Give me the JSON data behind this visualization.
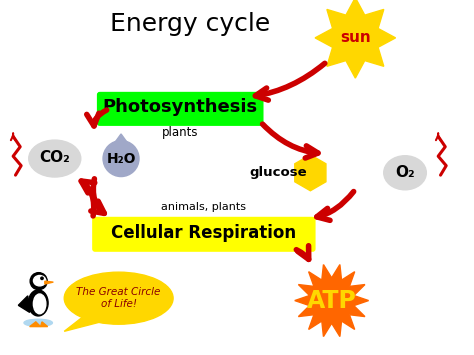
{
  "title": "Energy cycle",
  "bg_color": "#ffffff",
  "title_fontsize": 18,
  "photosynthesis_label": "Photosynthesis",
  "photosynthesis_sub": "plants",
  "photosynthesis_box_color": "#00ff00",
  "cellular_label": "Cellular Respiration",
  "cellular_sub": "animals, plants",
  "cellular_box_color": "#ffff00",
  "sun_color": "#ffd700",
  "sun_edge_color": "#b8860b",
  "sun_text": "sun",
  "sun_text_color": "#cc0000",
  "glucose_color": "#ffd700",
  "glucose_label": "glucose",
  "o2_label": "O₂",
  "co2_label": "CO₂",
  "h2o_label": "H₂O",
  "atp_label": "ATP",
  "atp_burst_color": "#ff6600",
  "atp_text_color": "#ffd700",
  "arrow_color": "#cc0000",
  "lightning_color": "#cc0000",
  "speech_bubble_color": "#ffd700",
  "speech_text": "The Great Circle\nof Life!",
  "speech_text_color": "#8B0000",
  "oval_color": "#d8d8d8",
  "water_drop_color": "#a0a8c8"
}
